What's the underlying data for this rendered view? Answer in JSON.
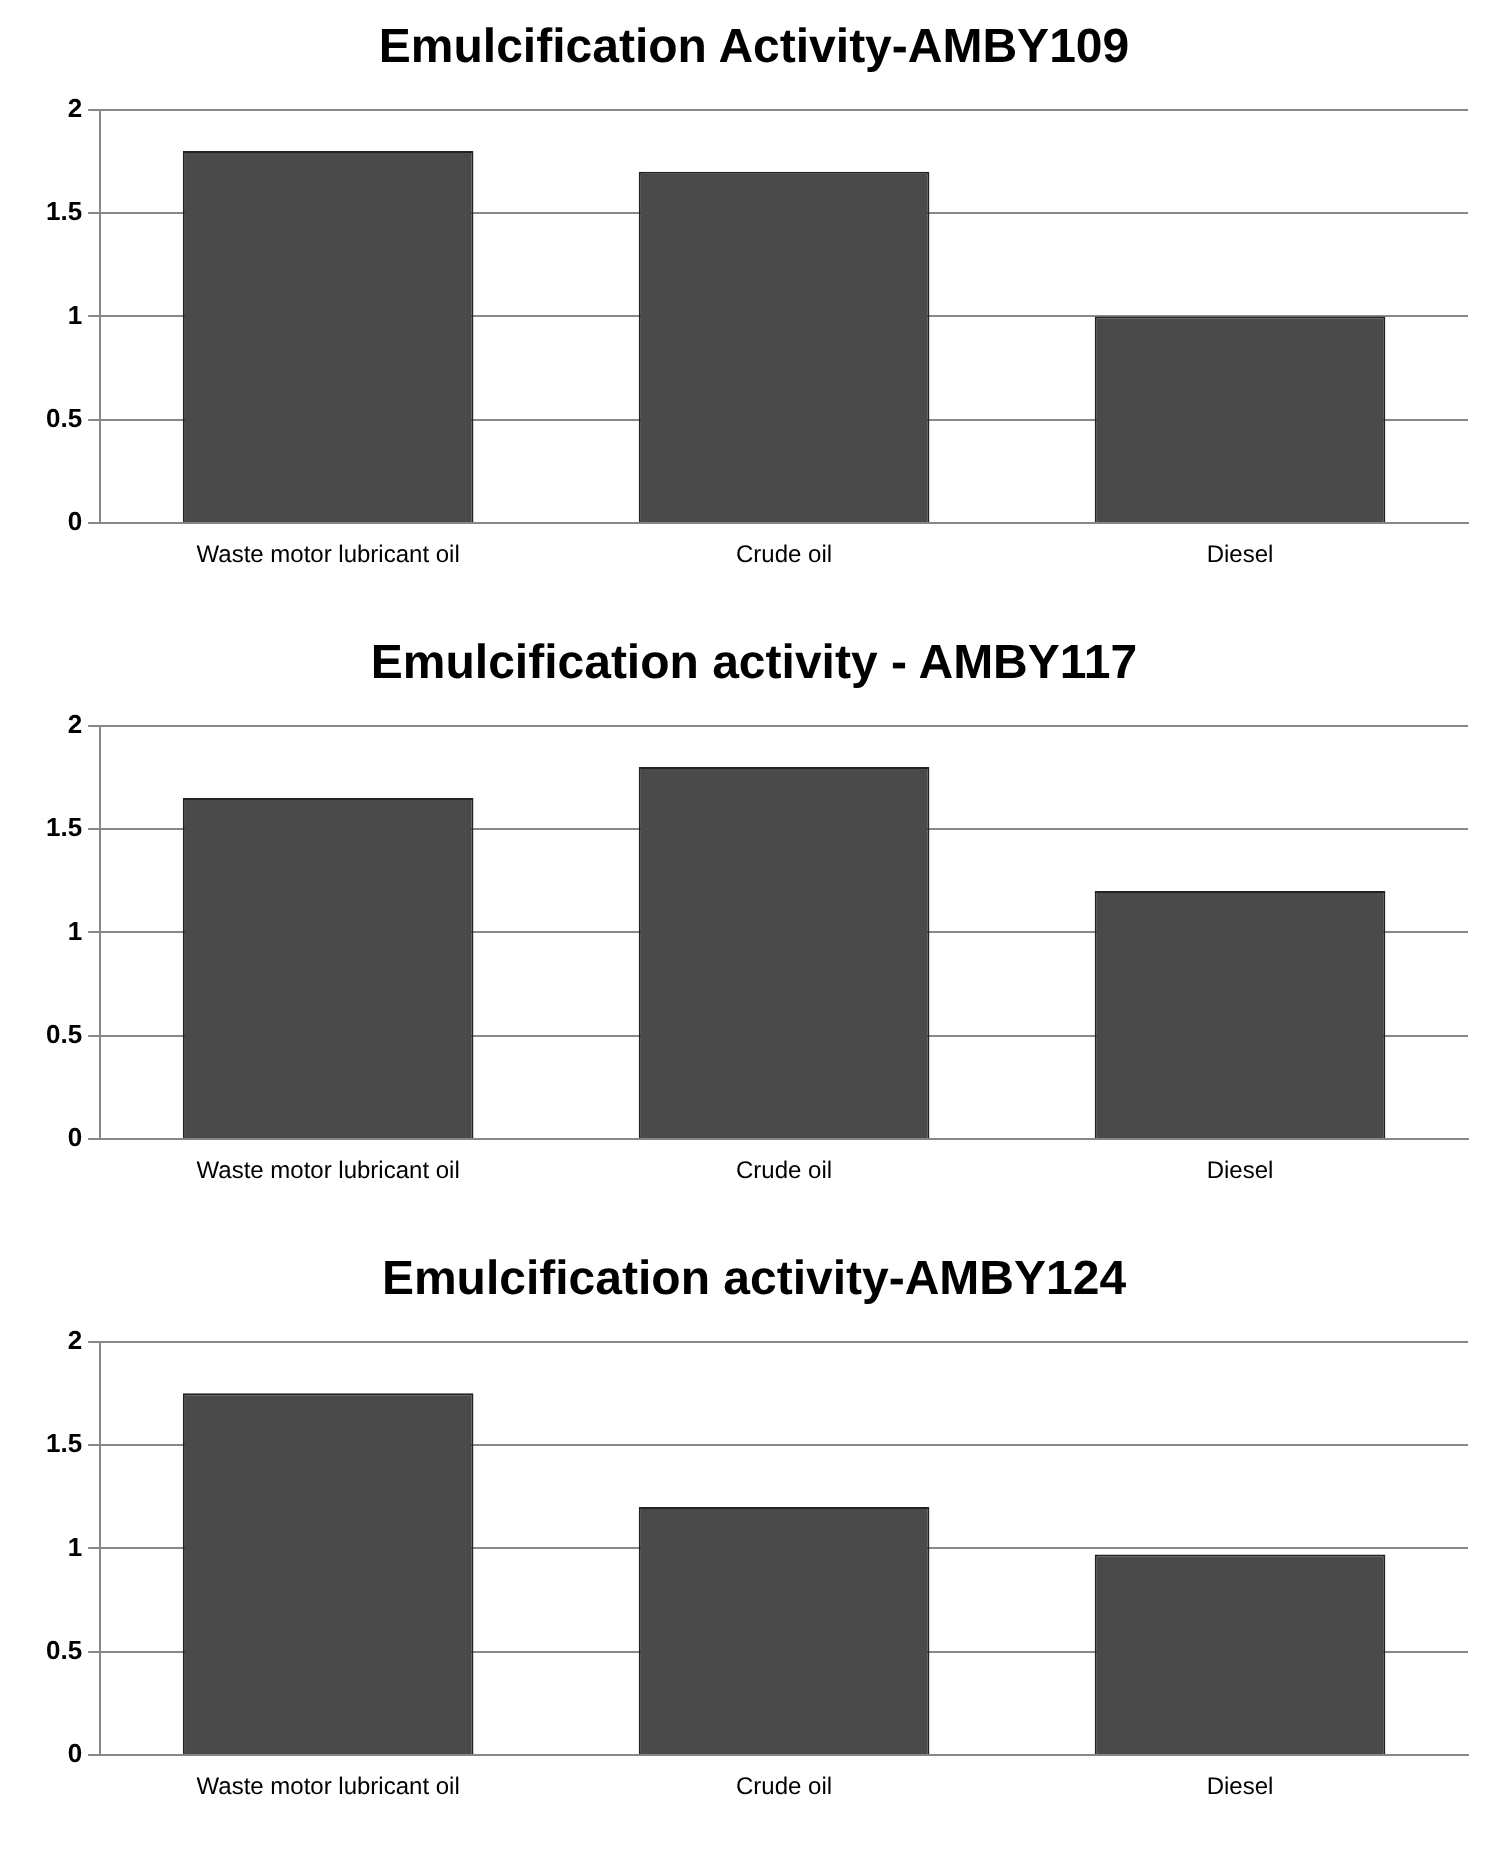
{
  "chart_data": [
    {
      "type": "bar",
      "title": "Emulcification Activity-AMBY109",
      "categories": [
        "Waste motor lubricant oil",
        "Crude oil",
        "Diesel"
      ],
      "values": [
        1.8,
        1.7,
        1.0
      ],
      "color": "#4a4a4a",
      "ylim": [
        0,
        2
      ],
      "yticks": [
        0,
        0.5,
        1,
        1.5,
        2
      ],
      "grid": "y"
    },
    {
      "type": "bar",
      "title": "Emulcification activity - AMBY117",
      "categories": [
        "Waste motor lubricant oil",
        "Crude oil",
        "Diesel"
      ],
      "values": [
        1.65,
        1.8,
        1.2
      ],
      "color": "#4a4a4a",
      "ylim": [
        0,
        2
      ],
      "yticks": [
        0,
        0.5,
        1,
        1.5,
        2
      ],
      "grid": "y"
    },
    {
      "type": "bar",
      "title": "Emulcification activity-AMBY124",
      "categories": [
        "Waste motor lubricant oil",
        "Crude oil",
        "Diesel"
      ],
      "values": [
        1.75,
        1.2,
        0.97
      ],
      "color": "#4a4a4a",
      "ylim": [
        0,
        2
      ],
      "yticks": [
        0,
        0.5,
        1,
        1.5,
        2
      ],
      "grid": "y"
    }
  ]
}
